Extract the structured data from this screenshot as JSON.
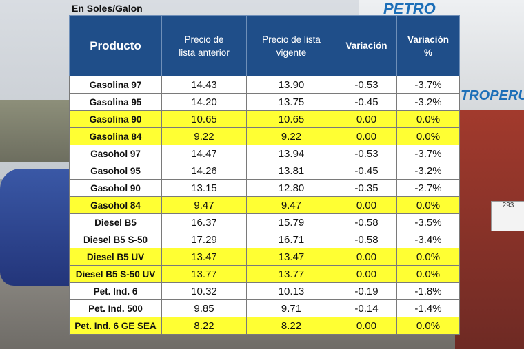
{
  "caption": "En Soles/Galon",
  "background": {
    "brand_top": "PETRO",
    "brand_side": "TROPERU",
    "sign_text": "293"
  },
  "table": {
    "headers": {
      "producto": "Producto",
      "precio_anterior_l1": "Precio de",
      "precio_anterior_l2": "lista anterior",
      "precio_vigente_l1": "Precio de lista",
      "precio_vigente_l2": "vigente",
      "variacion": "Variación",
      "variacion_pct_l1": "Variación",
      "variacion_pct_l2": "%"
    },
    "highlight_color": "#ffff33",
    "header_color": "#1f4e89",
    "rows": [
      {
        "producto": "Gasolina 97",
        "anterior": "14.43",
        "vigente": "13.90",
        "variacion": "-0.53",
        "pct": "-3.7%",
        "highlight": false
      },
      {
        "producto": "Gasolina 95",
        "anterior": "14.20",
        "vigente": "13.75",
        "variacion": "-0.45",
        "pct": "-3.2%",
        "highlight": false
      },
      {
        "producto": "Gasolina 90",
        "anterior": "10.65",
        "vigente": "10.65",
        "variacion": "0.00",
        "pct": "0.0%",
        "highlight": true
      },
      {
        "producto": "Gasolina 84",
        "anterior": "9.22",
        "vigente": "9.22",
        "variacion": "0.00",
        "pct": "0.0%",
        "highlight": true
      },
      {
        "producto": "Gasohol 97",
        "anterior": "14.47",
        "vigente": "13.94",
        "variacion": "-0.53",
        "pct": "-3.7%",
        "highlight": false
      },
      {
        "producto": "Gasohol 95",
        "anterior": "14.26",
        "vigente": "13.81",
        "variacion": "-0.45",
        "pct": "-3.2%",
        "highlight": false
      },
      {
        "producto": "Gasohol 90",
        "anterior": "13.15",
        "vigente": "12.80",
        "variacion": "-0.35",
        "pct": "-2.7%",
        "highlight": false
      },
      {
        "producto": "Gasohol 84",
        "anterior": "9.47",
        "vigente": "9.47",
        "variacion": "0.00",
        "pct": "0.0%",
        "highlight": true
      },
      {
        "producto": "Diesel B5",
        "anterior": "16.37",
        "vigente": "15.79",
        "variacion": "-0.58",
        "pct": "-3.5%",
        "highlight": false
      },
      {
        "producto": "Diesel B5 S-50",
        "anterior": "17.29",
        "vigente": "16.71",
        "variacion": "-0.58",
        "pct": "-3.4%",
        "highlight": false
      },
      {
        "producto": "Diesel B5 UV",
        "anterior": "13.47",
        "vigente": "13.47",
        "variacion": "0.00",
        "pct": "0.0%",
        "highlight": true
      },
      {
        "producto": "Diesel B5 S-50 UV",
        "anterior": "13.77",
        "vigente": "13.77",
        "variacion": "0.00",
        "pct": "0.0%",
        "highlight": true
      },
      {
        "producto": "Pet. Ind. 6",
        "anterior": "10.32",
        "vigente": "10.13",
        "variacion": "-0.19",
        "pct": "-1.8%",
        "highlight": false
      },
      {
        "producto": "Pet. Ind. 500",
        "anterior": "9.85",
        "vigente": "9.71",
        "variacion": "-0.14",
        "pct": "-1.4%",
        "highlight": false
      },
      {
        "producto": "Pet. Ind. 6 GE SEA",
        "anterior": "8.22",
        "vigente": "8.22",
        "variacion": "0.00",
        "pct": "0.0%",
        "highlight": true
      }
    ]
  }
}
